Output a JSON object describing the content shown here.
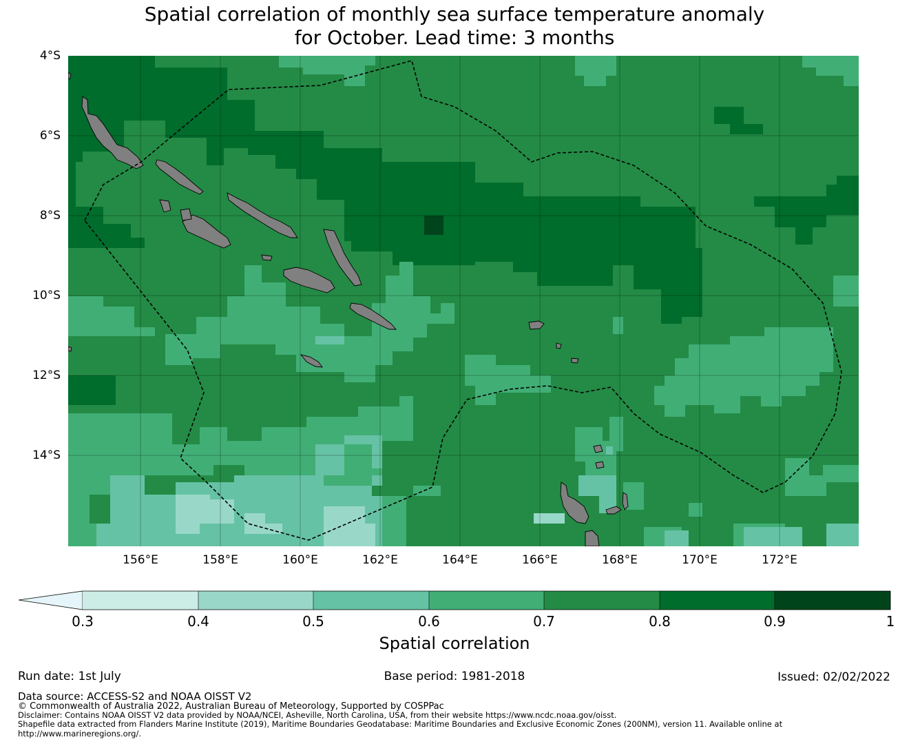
{
  "title": {
    "line1": "Spatial correlation of monthly sea surface temperature anomaly",
    "line2": "for October. Lead time: 3 months"
  },
  "map": {
    "lat_labels": [
      "4°S",
      "6°S",
      "8°S",
      "10°S",
      "12°S",
      "14°S"
    ],
    "lon_labels": [
      "156°E",
      "158°E",
      "160°E",
      "162°E",
      "164°E",
      "166°E",
      "168°E",
      "170°E",
      "172°E"
    ],
    "land_color": "#808080",
    "boundary_style": "dashed"
  },
  "colorbar": {
    "ticks": [
      "0.3",
      "0.4",
      "0.5",
      "0.6",
      "0.7",
      "0.8",
      "0.9",
      "1"
    ],
    "colors": [
      "#ccece6",
      "#99d8c9",
      "#66c2a4",
      "#41ae76",
      "#238b45",
      "#006d2c",
      "#00441b"
    ],
    "under_color": "#e5f5f9",
    "label": "Spatial correlation"
  },
  "info": {
    "run_date": "Run date: 1st July",
    "base_period": "Base period: 1981-2018",
    "issued": "Issued: 02/02/2022",
    "data_source": "Data source: ACCESS-S2 and NOAA OISST V2",
    "copyright": "© Commonwealth of Australia 2022, Australian Bureau of Meteorology, Supported by COSPPac",
    "disclaimer": "Disclaimer: Contains NOAA OISST V2 data provided by NOAA/NCEI, Asheville, North Carolina, USA, from their website https://www.ncdc.noaa.gov/oisst.",
    "shapefile_1": "Shapefile data extracted from Flanders Marine Institute (2019), Maritime Boundaries Geodatabase: Maritime Boundaries and Exclusive Economic Zones (200NM), version 11. Available online at",
    "shapefile_2": "http://www.marineregions.org/."
  }
}
